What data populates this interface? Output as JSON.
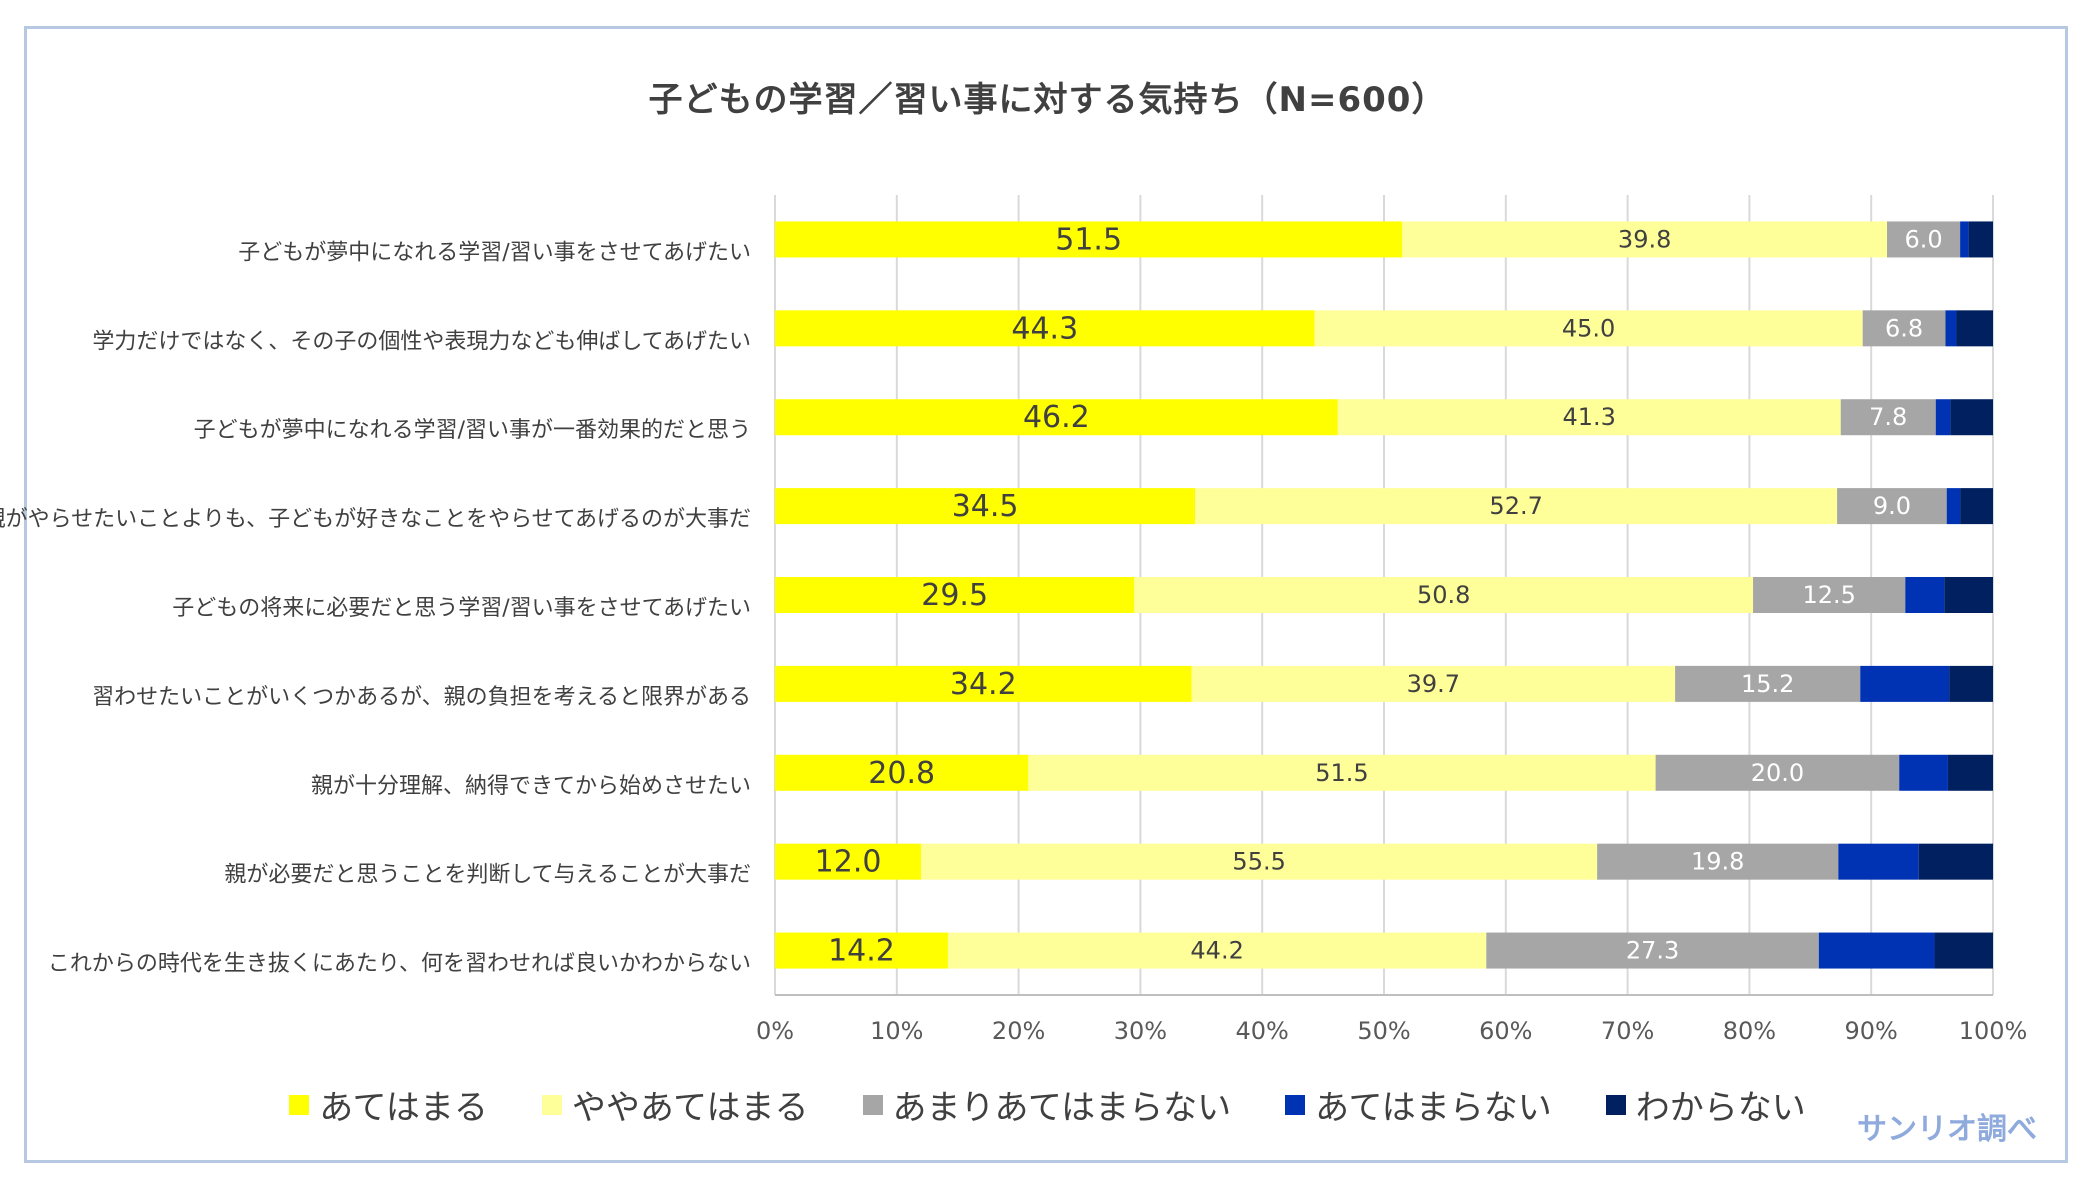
{
  "chart_data": {
    "type": "bar",
    "orientation": "horizontal",
    "stacked": true,
    "title": "子どもの学習／習い事に対する気持ち（N=600）",
    "categories": [
      "子どもが夢中になれる学習/習い事をさせてあげたい",
      "学力だけではなく、その子の個性や表現力なども伸ばしてあげたい",
      "子どもが夢中になれる学習/習い事が一番効果的だと思う",
      "親がやらせたいことよりも、子どもが好きなことをやらせてあげるのが大事だ",
      "子どもの将来に必要だと思う学習/習い事をさせてあげたい",
      "習わせたいことがいくつかあるが、親の負担を考えると限界がある",
      "親が十分理解、納得できてから始めさせたい",
      "親が必要だと思うことを判断して与えることが大事だ",
      "これからの時代を生き抜くにあたり、何を習わせれば良いかわからない"
    ],
    "series": [
      {
        "name": "あてはまる",
        "color": "#ffff00",
        "labelColor": "#404040",
        "values": [
          51.5,
          44.3,
          46.2,
          34.5,
          29.5,
          34.2,
          20.8,
          12.0,
          14.2
        ]
      },
      {
        "name": "ややあてはまる",
        "color": "#ffff99",
        "labelColor": "#404040",
        "values": [
          39.8,
          45.0,
          41.3,
          52.7,
          50.8,
          39.7,
          51.5,
          55.5,
          44.2
        ]
      },
      {
        "name": "あまりあてはまらない",
        "color": "#a6a6a6",
        "labelColor": "#ffffff",
        "values": [
          6.0,
          6.8,
          7.8,
          9.0,
          12.5,
          15.2,
          20.0,
          19.8,
          27.3
        ]
      },
      {
        "name": "あてはまらない",
        "color": "#0033b3",
        "labelColor": "#ffffff",
        "values": [
          0.7,
          0.9,
          1.2,
          1.1,
          3.2,
          7.3,
          4.0,
          6.6,
          9.5
        ]
      },
      {
        "name": "わからない",
        "color": "#002060",
        "labelColor": "#ffffff",
        "values": [
          2.0,
          3.0,
          3.5,
          2.7,
          4.0,
          3.6,
          3.7,
          6.1,
          4.8
        ]
      }
    ],
    "value_labels_shown_for": [
      "あてはまる",
      "ややあてはまる",
      "あまりあてはまらない"
    ],
    "xlim": [
      0,
      100
    ],
    "xticks": [
      "0%",
      "10%",
      "20%",
      "30%",
      "40%",
      "50%",
      "60%",
      "70%",
      "80%",
      "90%",
      "100%"
    ],
    "grid": true,
    "legend": "bottom"
  },
  "credit": "サンリオ調べ"
}
